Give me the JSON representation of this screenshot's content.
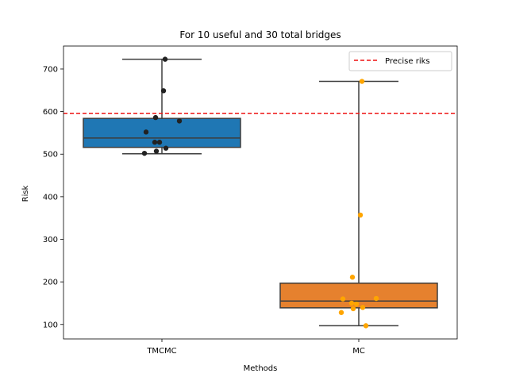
{
  "chart_data": {
    "type": "box",
    "title": "For 10 useful and 30 total bridges",
    "xlabel": "Methods",
    "ylabel": "Risk",
    "ylim": [
      66,
      754
    ],
    "yticks": [
      100,
      200,
      300,
      400,
      500,
      600,
      700
    ],
    "categories": [
      "TMCMC",
      "MC"
    ],
    "reference_line": {
      "label": "Precise riks",
      "value": 596,
      "color": "#d62728",
      "style": "dashed"
    },
    "legend_position": "top-right",
    "boxes": [
      {
        "name": "TMCMC",
        "color": "#1f77b4",
        "point_color": "#222222",
        "whisker_low": 501,
        "q1": 516,
        "median": 538,
        "q3": 584,
        "whisker_high": 723,
        "points": [
          723,
          649,
          586,
          578,
          552,
          528,
          528,
          514,
          507,
          502
        ]
      },
      {
        "name": "MC",
        "color": "#e6812e",
        "point_color": "#ffa500",
        "whisker_low": 97,
        "q1": 139,
        "median": 155,
        "q3": 197,
        "whisker_high": 671,
        "points": [
          671,
          357,
          211,
          161,
          160,
          150,
          148,
          140,
          137,
          128,
          97
        ]
      }
    ]
  }
}
